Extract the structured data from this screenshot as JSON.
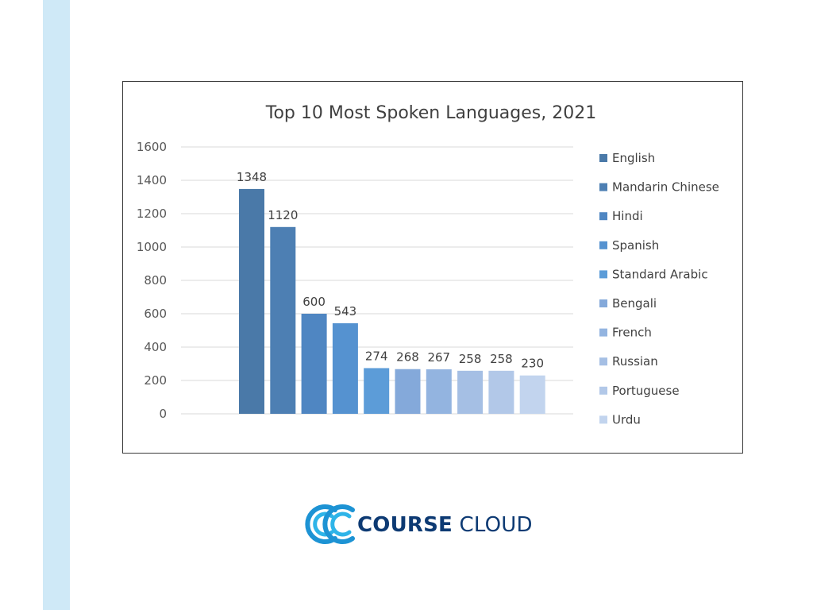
{
  "chart_data": {
    "type": "bar",
    "title": "Top 10 Most Spoken Languages, 2021",
    "categories": [
      "English",
      "Mandarin Chinese",
      "Hindi",
      "Spanish",
      "Standard Arabic",
      "Bengali",
      "French",
      "Russian",
      "Portuguese",
      "Urdu"
    ],
    "values": [
      1348,
      1120,
      600,
      543,
      274,
      268,
      267,
      258,
      258,
      230
    ],
    "colors": [
      "#4a79a8",
      "#4d7fb3",
      "#4f86c2",
      "#5592d0",
      "#5c9cd8",
      "#84a9da",
      "#93b4e0",
      "#a5bfe4",
      "#b2c8e8",
      "#c2d4ee"
    ],
    "ylim": [
      0,
      1600
    ],
    "yticks": [
      "0",
      "200",
      "400",
      "600",
      "800",
      "1000",
      "1200",
      "1400",
      "1600"
    ],
    "grid": true,
    "legend_position": "right",
    "xlabel": "",
    "ylabel": ""
  },
  "logo": {
    "bold": "COURSE",
    "regular": " CLOUD",
    "colors": {
      "arc1": "#1d93d4",
      "arc2": "#2eb4e8",
      "text": "#0d3a73"
    }
  }
}
